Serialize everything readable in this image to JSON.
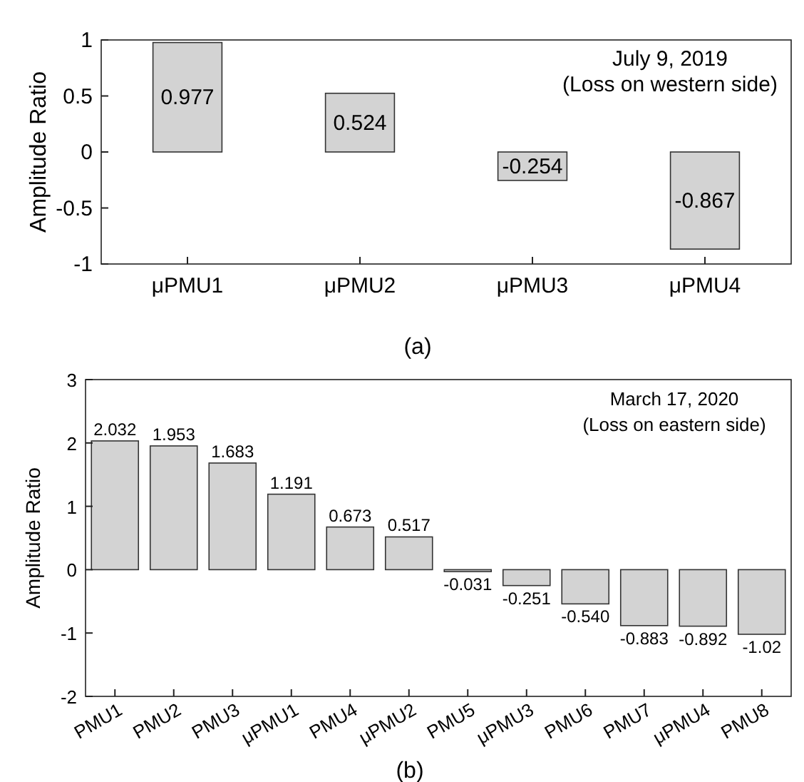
{
  "chart_data": [
    {
      "type": "bar",
      "title": "(a)",
      "ylabel": "Amplitude Ratio",
      "categories": [
        "μPMU1",
        "μPMU2",
        "μPMU3",
        "μPMU4"
      ],
      "values": [
        0.977,
        0.524,
        -0.254,
        -0.867
      ],
      "color": "#d3d3d3",
      "ylim": [
        -1,
        1
      ],
      "yticks": [
        -1,
        -0.5,
        0,
        0.5,
        1
      ],
      "data_labels": true,
      "annotations": [
        "July 9, 2019",
        "(Loss on western side)"
      ]
    },
    {
      "type": "bar",
      "title": "(b)",
      "ylabel": "Amplitude Ratio",
      "categories": [
        "PMU1",
        "PMU2",
        "PMU3",
        "μPMU1",
        "PMU4",
        "μPMU2",
        "PMU5",
        "μPMU3",
        "PMU6",
        "PMU7",
        "μPMU4",
        "PMU8"
      ],
      "values": [
        2.032,
        1.953,
        1.683,
        1.191,
        0.673,
        0.517,
        -0.031,
        -0.251,
        -0.54,
        -0.883,
        -0.892,
        -1.02
      ],
      "value_labels": [
        "2.032",
        "1.953",
        "1.683",
        "1.191",
        "0.673",
        "0.517",
        "-0.031",
        "-0.251",
        "-0.540",
        "-0.883",
        "-0.892",
        "-1.02"
      ],
      "color": "#d3d3d3",
      "ylim": [
        -2,
        3
      ],
      "yticks": [
        -2,
        -1,
        0,
        1,
        2,
        3
      ],
      "annotations": [
        "March 17, 2020",
        "(Loss on eastern side)"
      ]
    }
  ]
}
